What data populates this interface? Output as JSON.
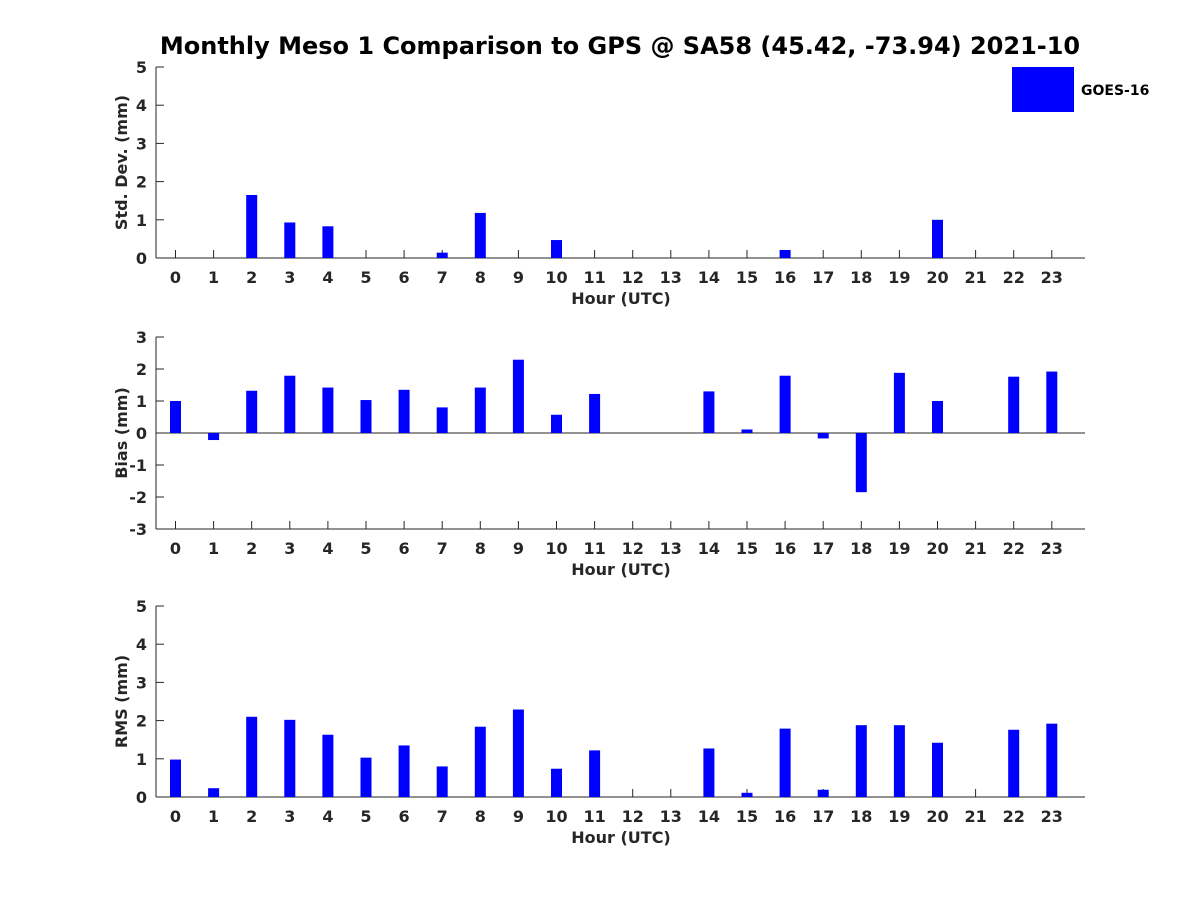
{
  "chart_data": {
    "title": "Monthly Meso 1 Comparison to GPS @ SA58 (45.42, -73.94) 2021-10",
    "legend": {
      "placement": "top-right",
      "entries": [
        {
          "name": "GOES-16",
          "color": "#0000ff"
        }
      ]
    },
    "bar_color": "#0000ff",
    "axis_color": "#262626",
    "grid": false,
    "panels": [
      {
        "type": "bar",
        "xlabel": "Hour (UTC)",
        "ylabel": "Std. Dev. (mm)",
        "ylim": [
          0,
          5
        ],
        "yticks": [
          "0",
          "1",
          "2",
          "3",
          "4",
          "5"
        ],
        "categories": [
          "0",
          "1",
          "2",
          "3",
          "4",
          "5",
          "6",
          "7",
          "8",
          "9",
          "10",
          "11",
          "12",
          "13",
          "14",
          "15",
          "16",
          "17",
          "18",
          "19",
          "20",
          "21",
          "22",
          "23"
        ],
        "series": [
          {
            "name": "GOES-16",
            "values": [
              null,
              null,
              1.65,
              0.93,
              0.83,
              null,
              null,
              0.14,
              1.18,
              null,
              0.47,
              null,
              null,
              null,
              null,
              null,
              0.21,
              null,
              null,
              null,
              1.0,
              null,
              null,
              null
            ]
          }
        ]
      },
      {
        "type": "bar",
        "xlabel": "Hour (UTC)",
        "ylabel": "Bias (mm)",
        "ylim": [
          -3,
          3
        ],
        "yticks": [
          "-3",
          "-2",
          "-1",
          "0",
          "1",
          "2",
          "3"
        ],
        "categories": [
          "0",
          "1",
          "2",
          "3",
          "4",
          "5",
          "6",
          "7",
          "8",
          "9",
          "10",
          "11",
          "12",
          "13",
          "14",
          "15",
          "16",
          "17",
          "18",
          "19",
          "20",
          "21",
          "22",
          "23"
        ],
        "series": [
          {
            "name": "GOES-16",
            "values": [
              1.0,
              -0.22,
              1.32,
              1.79,
              1.42,
              1.03,
              1.35,
              0.8,
              1.42,
              2.29,
              0.57,
              1.22,
              null,
              null,
              1.3,
              0.11,
              1.79,
              -0.17,
              -1.85,
              1.88,
              1.0,
              null,
              1.76,
              1.92
            ]
          }
        ]
      },
      {
        "type": "bar",
        "xlabel": "Hour (UTC)",
        "ylabel": "RMS (mm)",
        "ylim": [
          0,
          5
        ],
        "yticks": [
          "0",
          "1",
          "2",
          "3",
          "4",
          "5"
        ],
        "categories": [
          "0",
          "1",
          "2",
          "3",
          "4",
          "5",
          "6",
          "7",
          "8",
          "9",
          "10",
          "11",
          "12",
          "13",
          "14",
          "15",
          "16",
          "17",
          "18",
          "19",
          "20",
          "21",
          "22",
          "23"
        ],
        "series": [
          {
            "name": "GOES-16",
            "values": [
              0.98,
              0.23,
              2.1,
              2.02,
              1.63,
              1.03,
              1.35,
              0.8,
              1.84,
              2.29,
              0.74,
              1.22,
              null,
              null,
              1.27,
              0.11,
              1.79,
              0.19,
              1.88,
              1.88,
              1.42,
              null,
              1.76,
              1.92
            ]
          }
        ]
      }
    ]
  }
}
